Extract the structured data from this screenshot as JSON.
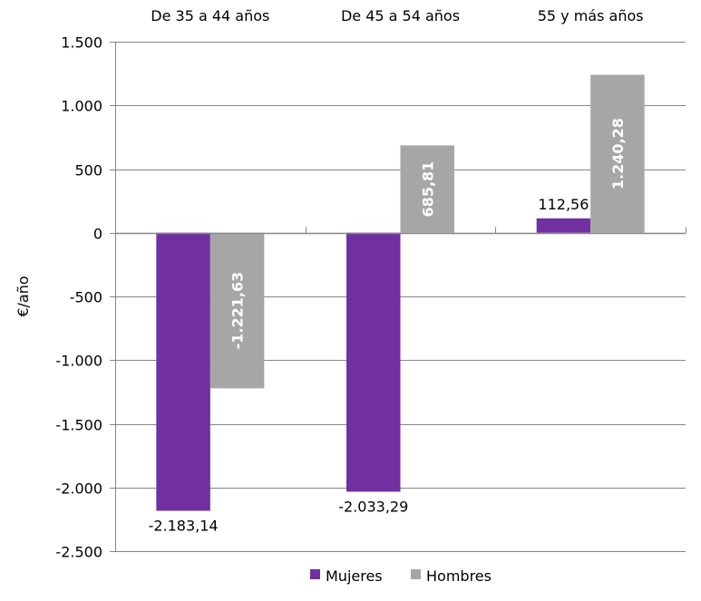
{
  "chart_data": {
    "type": "bar",
    "title": "",
    "xlabel": "",
    "ylabel": "€/año",
    "ylim": [
      -2500,
      1500
    ],
    "yticks": [
      1500,
      1000,
      500,
      0,
      -500,
      -1000,
      -1500,
      -2000,
      -2500
    ],
    "ytick_labels": [
      "1.500",
      "1.000",
      "500",
      "0",
      "-500",
      "-1.000",
      "-1.500",
      "-2.000",
      "-2.500"
    ],
    "grid": true,
    "legend_position": "bottom",
    "categories": [
      "De 35 a 44 años",
      "De 45 a 54 años",
      "55 y más años"
    ],
    "series": [
      {
        "name": "Mujeres",
        "color": "#7030A0",
        "values": [
          -2183.14,
          -2033.29,
          112.56
        ],
        "labels": [
          "-2.183,14",
          "-2.033,29",
          "112,56"
        ]
      },
      {
        "name": "Hombres",
        "color": "#A6A6A6",
        "values": [
          -1221.63,
          685.81,
          1240.28
        ],
        "labels": [
          "-1.221,63",
          "685,81",
          "1.240,28"
        ]
      }
    ]
  }
}
